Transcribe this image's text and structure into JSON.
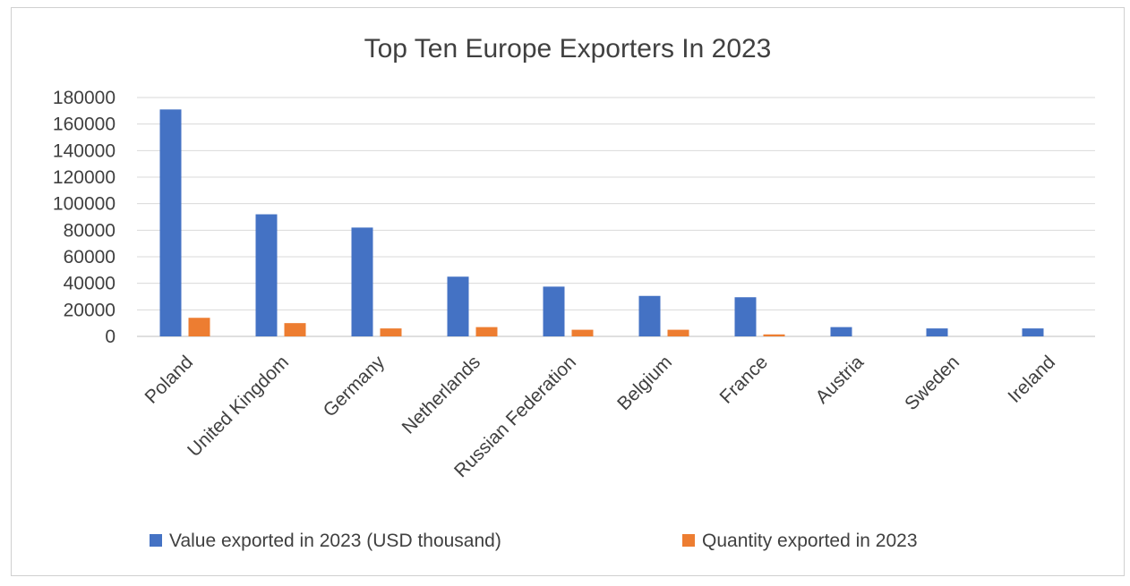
{
  "chart_data": {
    "type": "bar",
    "title": "Top Ten Europe Exporters In 2023",
    "xlabel": "",
    "ylabel": "",
    "categories": [
      "Poland",
      "United Kingdom",
      "Germany",
      "Netherlands",
      "Russian Federation",
      "Belgium",
      "France",
      "Austria",
      "Sweden",
      "Ireland"
    ],
    "series": [
      {
        "name": "Value exported in 2023 (USD thousand)",
        "color": "#4472C4",
        "values": [
          171000,
          92000,
          82000,
          45000,
          37500,
          30500,
          29500,
          7000,
          6000,
          6000
        ]
      },
      {
        "name": "Quantity exported in 2023",
        "color": "#ED7D31",
        "values": [
          14000,
          10000,
          6000,
          7000,
          5000,
          5000,
          1500,
          0,
          0,
          0
        ]
      }
    ],
    "ylim": [
      0,
      180000
    ],
    "yticks": [
      0,
      20000,
      40000,
      60000,
      80000,
      100000,
      120000,
      140000,
      160000,
      180000
    ],
    "grid": true,
    "legend_position": "bottom"
  }
}
